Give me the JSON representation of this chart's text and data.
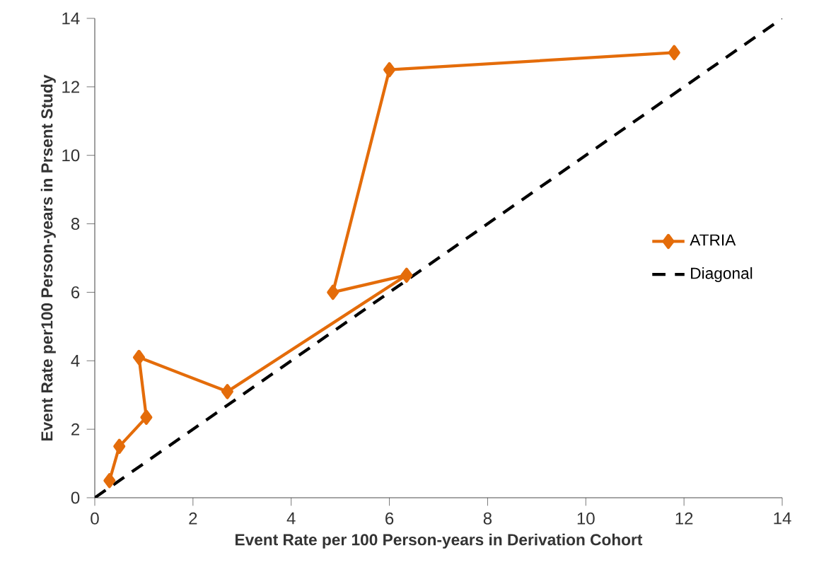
{
  "chart_data": {
    "type": "line",
    "xlabel": "Event Rate per 100 Person-years in Derivation Cohort",
    "ylabel": "Event Rate per100 Person-years in Prsent Study",
    "series": [
      {
        "name": "ATRIA",
        "color": "#e46c0a",
        "marker": "diamond",
        "line_style": "solid",
        "x": [
          0.3,
          0.5,
          1.05,
          0.9,
          2.7,
          6.35,
          4.85,
          6.0,
          11.8
        ],
        "values": [
          0.5,
          1.5,
          2.35,
          4.1,
          3.1,
          6.5,
          6.0,
          12.5,
          13.0
        ]
      },
      {
        "name": "Diagonal",
        "color": "#000000",
        "marker": "none",
        "line_style": "dashed",
        "x": [
          0,
          14
        ],
        "values": [
          0,
          14
        ]
      }
    ],
    "xlim": [
      0,
      14
    ],
    "ylim": [
      0,
      14
    ],
    "xticks": [
      0,
      2,
      4,
      6,
      8,
      10,
      12,
      14
    ],
    "yticks": [
      0,
      2,
      4,
      6,
      8,
      10,
      12,
      14
    ],
    "grid": false,
    "legend": "right"
  }
}
